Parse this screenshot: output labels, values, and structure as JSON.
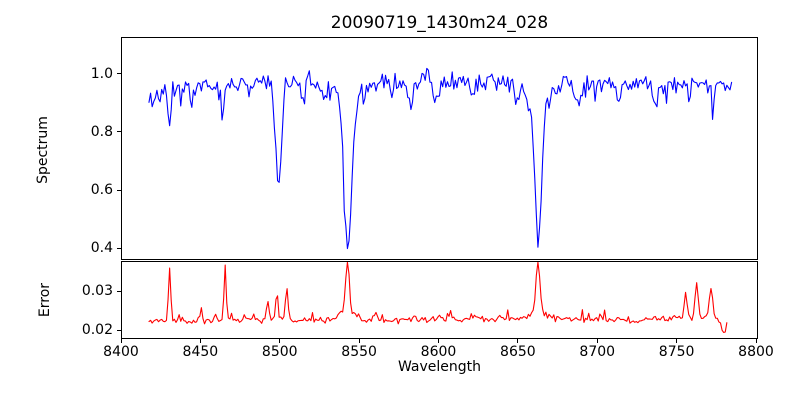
{
  "figure": {
    "title": "20090719_1430m24_028",
    "background": "#ffffff"
  },
  "chart_data": [
    {
      "type": "line",
      "name": "spectrum",
      "title": "20090719_1430m24_028",
      "ylabel": "Spectrum",
      "line_color": "#0000ff",
      "xlim": [
        8400,
        8800
      ],
      "ylim": [
        0.366,
        1.127
      ],
      "yticks": [
        1.0,
        0.8,
        0.6,
        0.4
      ],
      "ytick_labels": [
        "1.0",
        "0.8",
        "0.6",
        "0.4"
      ],
      "x_range": [
        8417,
        8784
      ],
      "step": 1.0,
      "noise_sigma": 0.017,
      "noise_seed": 11,
      "random_dips": {
        "prob": 0.06,
        "max": 0.06
      },
      "baseline_points": [
        [
          8417,
          0.925
        ],
        [
          8430,
          0.945
        ],
        [
          8445,
          0.955
        ],
        [
          8460,
          0.965
        ],
        [
          8475,
          0.972
        ],
        [
          8495,
          0.972
        ],
        [
          8515,
          0.968
        ],
        [
          8535,
          0.972
        ],
        [
          8560,
          0.974
        ],
        [
          8585,
          0.972
        ],
        [
          8610,
          0.976
        ],
        [
          8640,
          0.973
        ],
        [
          8665,
          0.97
        ],
        [
          8690,
          0.968
        ],
        [
          8715,
          0.966
        ],
        [
          8740,
          0.97
        ],
        [
          8760,
          0.965
        ],
        [
          8775,
          0.968
        ],
        [
          8784,
          0.975
        ]
      ],
      "features": [
        {
          "center": 8430.0,
          "amp": -0.13,
          "sigma": 0.9
        },
        {
          "center": 8444.0,
          "amp": -0.05,
          "sigma": 0.9
        },
        {
          "center": 8464.0,
          "amp": -0.095,
          "sigma": 1.0
        },
        {
          "center": 8480.0,
          "amp": -0.07,
          "sigma": 0.9
        },
        {
          "center": 8498.5,
          "amp": -0.33,
          "sigma": 1.9
        },
        {
          "center": 8514.0,
          "amp": -0.06,
          "sigma": 1.0
        },
        {
          "center": 8527.0,
          "amp": -0.07,
          "sigma": 1.0
        },
        {
          "center": 8542.3,
          "amp": -0.47,
          "sigma": 2.2
        },
        {
          "center": 8542.3,
          "amp": -0.1,
          "sigma": 6.0
        },
        {
          "center": 8570.0,
          "amp": -0.05,
          "sigma": 1.0
        },
        {
          "center": 8582.0,
          "amp": -0.095,
          "sigma": 1.3
        },
        {
          "center": 8598.0,
          "amp": -0.07,
          "sigma": 1.1
        },
        {
          "center": 8621.0,
          "amp": -0.05,
          "sigma": 1.0
        },
        {
          "center": 8648.0,
          "amp": -0.055,
          "sigma": 1.0
        },
        {
          "center": 8662.2,
          "amp": -0.445,
          "sigma": 2.1
        },
        {
          "center": 8662.2,
          "amp": -0.09,
          "sigma": 6.0
        },
        {
          "center": 8688.0,
          "amp": -0.095,
          "sigma": 1.2
        },
        {
          "center": 8713.0,
          "amp": -0.07,
          "sigma": 1.1
        },
        {
          "center": 8736.0,
          "amp": -0.1,
          "sigma": 1.3
        },
        {
          "center": 8757.0,
          "amp": -0.06,
          "sigma": 1.0
        },
        {
          "center": 8772.0,
          "amp": -0.095,
          "sigma": 1.1
        }
      ]
    },
    {
      "type": "line",
      "name": "error",
      "ylabel": "Error",
      "xlabel": "Wavelength",
      "line_color": "#ff0000",
      "xlim": [
        8400,
        8800
      ],
      "ylim": [
        0.0182,
        0.0379
      ],
      "yticks": [
        0.03,
        0.02
      ],
      "ytick_labels": [
        "0.03",
        "0.02"
      ],
      "xticks": [
        8400,
        8450,
        8500,
        8550,
        8600,
        8650,
        8700,
        8750,
        8800
      ],
      "xtick_labels": [
        "8400",
        "8450",
        "8500",
        "8550",
        "8600",
        "8650",
        "8700",
        "8750",
        "8800"
      ],
      "x_range": [
        8417,
        8781
      ],
      "step": 1.0,
      "noise_sigma": 0.00045,
      "noise_seed": 5,
      "random_bumps": {
        "prob": 0.05,
        "max": 0.0025
      },
      "baseline_points": [
        [
          8417,
          0.0224
        ],
        [
          8440,
          0.0227
        ],
        [
          8470,
          0.0229
        ],
        [
          8500,
          0.023
        ],
        [
          8530,
          0.0231
        ],
        [
          8560,
          0.0229
        ],
        [
          8590,
          0.0231
        ],
        [
          8620,
          0.0232
        ],
        [
          8650,
          0.0234
        ],
        [
          8680,
          0.0231
        ],
        [
          8710,
          0.0229
        ],
        [
          8740,
          0.0232
        ],
        [
          8758,
          0.0234
        ],
        [
          8770,
          0.0233
        ],
        [
          8776,
          0.0228
        ],
        [
          8779,
          0.0196
        ],
        [
          8781,
          0.0211
        ]
      ],
      "features": [
        {
          "center": 8430.0,
          "amp": 0.014,
          "sigma": 0.7
        },
        {
          "center": 8450.0,
          "amp": 0.003,
          "sigma": 0.7
        },
        {
          "center": 8465.0,
          "amp": 0.0125,
          "sigma": 0.7
        },
        {
          "center": 8477.0,
          "amp": 0.002,
          "sigma": 0.7
        },
        {
          "center": 8492.0,
          "amp": 0.0045,
          "sigma": 0.8
        },
        {
          "center": 8497.5,
          "amp": 0.0065,
          "sigma": 0.8
        },
        {
          "center": 8504.0,
          "amp": 0.0075,
          "sigma": 0.8
        },
        {
          "center": 8542.0,
          "amp": 0.014,
          "sigma": 1.0
        },
        {
          "center": 8542.0,
          "amp": 0.003,
          "sigma": 4.0
        },
        {
          "center": 8560.0,
          "amp": 0.0015,
          "sigma": 1.0
        },
        {
          "center": 8662.0,
          "amp": 0.013,
          "sigma": 1.1
        },
        {
          "center": 8662.0,
          "amp": 0.0028,
          "sigma": 4.0
        },
        {
          "center": 8755.0,
          "amp": 0.007,
          "sigma": 0.9
        },
        {
          "center": 8762.0,
          "amp": 0.0095,
          "sigma": 0.9
        },
        {
          "center": 8771.0,
          "amp": 0.008,
          "sigma": 1.2
        }
      ]
    }
  ]
}
